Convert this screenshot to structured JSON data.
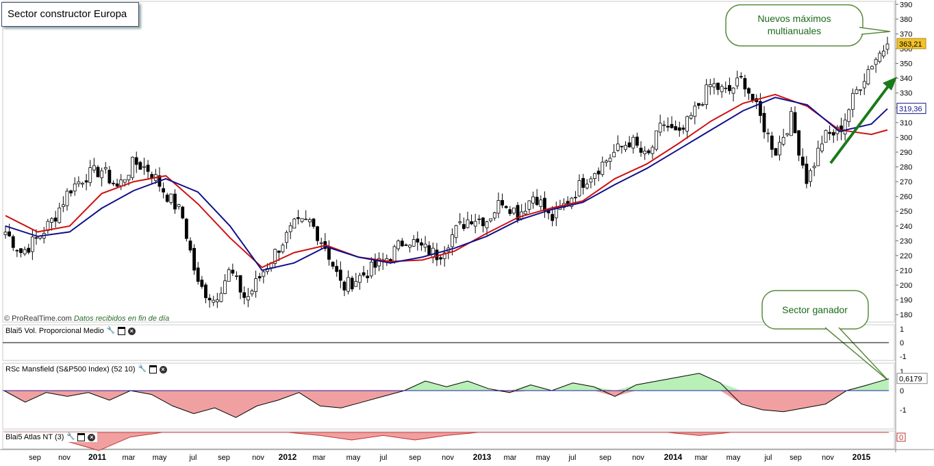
{
  "title": "Sector constructor Europa",
  "watermark": {
    "brand": "© ProRealTime.com",
    "note": "Datos recibidos en fin de día"
  },
  "callouts": {
    "top": "Nuevos máximos multianuales",
    "bottom": "Sector ganador"
  },
  "price_labels": {
    "last": "363,21",
    "ma": "319,36"
  },
  "panels": {
    "vol": {
      "label": "Blai5 Vol. Proporcional Medio",
      "ticks": [
        "1",
        "0",
        "-1"
      ]
    },
    "rsc": {
      "label": "RSc Mansfield (S&P500 Index) (52 10)",
      "ticks": [
        "1",
        "0,6179",
        "0",
        "-1"
      ]
    },
    "atlas": {
      "label": "Blai5 Atlas NT (3)",
      "ticks": [
        "0"
      ]
    }
  },
  "colors": {
    "candle": "#000000",
    "ma_red": "#d01010",
    "ma_blue": "#10108a",
    "arrow": "#1a7a1a",
    "rsc_pos": "#b8f0b8",
    "rsc_neg": "#f0a0a0"
  },
  "chart_data": {
    "type": "candlestick",
    "frequency": "weekly",
    "y_ticks": [
      180,
      190,
      200,
      210,
      220,
      230,
      240,
      250,
      260,
      270,
      280,
      290,
      300,
      310,
      320,
      330,
      340,
      350,
      360,
      370,
      380,
      390
    ],
    "ylim": [
      175,
      392
    ],
    "x_ticks": [
      "sep",
      "nov",
      "2011",
      "mar",
      "may",
      "jul",
      "sep",
      "nov",
      "2012",
      "mar",
      "may",
      "jul",
      "sep",
      "nov",
      "2013",
      "mar",
      "may",
      "jul",
      "sep",
      "nov",
      "2014",
      "mar",
      "may",
      "jul",
      "sep",
      "nov",
      "2015"
    ],
    "close_series": [
      {
        "date": "2010-08",
        "value": 236
      },
      {
        "date": "2010-09",
        "value": 222
      },
      {
        "date": "2010-10",
        "value": 232
      },
      {
        "date": "2010-11",
        "value": 245
      },
      {
        "date": "2010-12",
        "value": 265
      },
      {
        "date": "2011-01",
        "value": 274
      },
      {
        "date": "2011-02",
        "value": 278
      },
      {
        "date": "2011-03",
        "value": 266
      },
      {
        "date": "2011-04",
        "value": 283
      },
      {
        "date": "2011-05",
        "value": 278
      },
      {
        "date": "2011-06",
        "value": 262
      },
      {
        "date": "2011-07",
        "value": 248
      },
      {
        "date": "2011-08",
        "value": 200
      },
      {
        "date": "2011-09",
        "value": 190
      },
      {
        "date": "2011-10",
        "value": 210
      },
      {
        "date": "2011-11",
        "value": 190
      },
      {
        "date": "2011-12",
        "value": 208
      },
      {
        "date": "2012-01",
        "value": 225
      },
      {
        "date": "2012-02",
        "value": 240
      },
      {
        "date": "2012-03",
        "value": 243
      },
      {
        "date": "2012-04",
        "value": 225
      },
      {
        "date": "2012-05",
        "value": 198
      },
      {
        "date": "2012-06",
        "value": 205
      },
      {
        "date": "2012-07",
        "value": 212
      },
      {
        "date": "2012-08",
        "value": 220
      },
      {
        "date": "2012-09",
        "value": 232
      },
      {
        "date": "2012-10",
        "value": 225
      },
      {
        "date": "2012-11",
        "value": 220
      },
      {
        "date": "2012-12",
        "value": 236
      },
      {
        "date": "2013-01",
        "value": 246
      },
      {
        "date": "2013-02",
        "value": 244
      },
      {
        "date": "2013-03",
        "value": 258
      },
      {
        "date": "2013-04",
        "value": 248
      },
      {
        "date": "2013-05",
        "value": 262
      },
      {
        "date": "2013-06",
        "value": 244
      },
      {
        "date": "2013-07",
        "value": 256
      },
      {
        "date": "2013-08",
        "value": 270
      },
      {
        "date": "2013-09",
        "value": 280
      },
      {
        "date": "2013-10",
        "value": 290
      },
      {
        "date": "2013-11",
        "value": 298
      },
      {
        "date": "2013-12",
        "value": 285
      },
      {
        "date": "2014-01",
        "value": 310
      },
      {
        "date": "2014-02",
        "value": 300
      },
      {
        "date": "2014-03",
        "value": 318
      },
      {
        "date": "2014-04",
        "value": 336
      },
      {
        "date": "2014-05",
        "value": 330
      },
      {
        "date": "2014-06",
        "value": 340
      },
      {
        "date": "2014-07",
        "value": 315
      },
      {
        "date": "2014-08",
        "value": 290
      },
      {
        "date": "2014-09",
        "value": 313
      },
      {
        "date": "2014-10",
        "value": 270
      },
      {
        "date": "2014-11",
        "value": 300
      },
      {
        "date": "2014-12",
        "value": 304
      },
      {
        "date": "2015-01",
        "value": 330
      },
      {
        "date": "2015-02",
        "value": 350
      },
      {
        "date": "2015-03",
        "value": 363.21
      }
    ],
    "moving_averages": [
      {
        "name": "red",
        "color": "#d01010",
        "values": [
          [
            0,
            247
          ],
          [
            2,
            236
          ],
          [
            4,
            240
          ],
          [
            6,
            262
          ],
          [
            8,
            270
          ],
          [
            10,
            274
          ],
          [
            12,
            255
          ],
          [
            14,
            232
          ],
          [
            16,
            212
          ],
          [
            18,
            222
          ],
          [
            20,
            227
          ],
          [
            22,
            219
          ],
          [
            24,
            216
          ],
          [
            26,
            217
          ],
          [
            28,
            223
          ],
          [
            30,
            235
          ],
          [
            32,
            246
          ],
          [
            34,
            252
          ],
          [
            36,
            257
          ],
          [
            38,
            272
          ],
          [
            40,
            282
          ],
          [
            42,
            296
          ],
          [
            44,
            311
          ],
          [
            46,
            323
          ],
          [
            48,
            329
          ],
          [
            50,
            321
          ],
          [
            52,
            305
          ],
          [
            54,
            302
          ],
          [
            55,
            305
          ]
        ]
      },
      {
        "name": "blue",
        "color": "#10108a",
        "values": [
          [
            0,
            240
          ],
          [
            2,
            233
          ],
          [
            4,
            236
          ],
          [
            6,
            252
          ],
          [
            8,
            264
          ],
          [
            10,
            272
          ],
          [
            12,
            263
          ],
          [
            14,
            240
          ],
          [
            16,
            210
          ],
          [
            18,
            215
          ],
          [
            20,
            226
          ],
          [
            22,
            219
          ],
          [
            24,
            215
          ],
          [
            26,
            219
          ],
          [
            28,
            225
          ],
          [
            30,
            233
          ],
          [
            32,
            244
          ],
          [
            34,
            251
          ],
          [
            36,
            256
          ],
          [
            38,
            268
          ],
          [
            40,
            279
          ],
          [
            42,
            292
          ],
          [
            44,
            305
          ],
          [
            46,
            318
          ],
          [
            48,
            327
          ],
          [
            50,
            322
          ],
          [
            52,
            304
          ],
          [
            54,
            309
          ],
          [
            55,
            319.36
          ]
        ]
      }
    ],
    "rsc_series": [
      0,
      -0.6,
      -0.1,
      -0.3,
      -0.1,
      -0.5,
      0.0,
      -0.2,
      -0.8,
      -1.2,
      -0.9,
      -1.4,
      -0.8,
      -0.5,
      -0.1,
      -0.8,
      -0.9,
      -0.6,
      -0.3,
      0.0,
      0.5,
      0.2,
      0.5,
      0.1,
      -0.1,
      0.3,
      0.0,
      0.4,
      0.2,
      -0.3,
      0.3,
      0.5,
      0.7,
      0.9,
      0.4,
      -0.7,
      -1.0,
      -1.1,
      -0.9,
      -0.7,
      0.0,
      0.3,
      0.6179
    ],
    "atlas_series": [
      0,
      0,
      -0.6,
      -1.2,
      -0.3,
      0,
      0,
      0,
      0,
      0,
      -0.2,
      -0.5,
      -0.2,
      -0.5,
      -0.2,
      0,
      0,
      0,
      0,
      0,
      0,
      0,
      -0.2,
      0,
      0,
      0,
      0,
      0,
      0
    ]
  }
}
